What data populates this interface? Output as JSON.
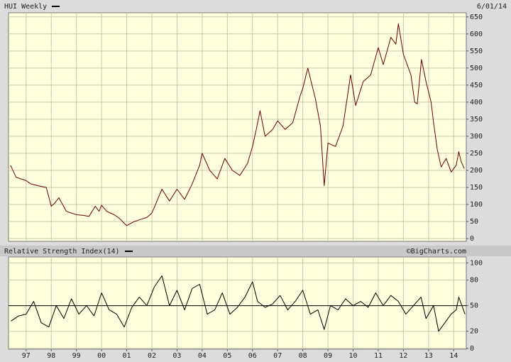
{
  "chart_data": [
    {
      "type": "line",
      "title": "HUI Weekly",
      "date": "6/01/14",
      "color": "#6b0000",
      "x": [
        1996.38,
        1996.6,
        1996.8,
        1997.0,
        1997.2,
        1997.5,
        1997.8,
        1998.0,
        1998.15,
        1998.3,
        1998.6,
        1998.8,
        1999.0,
        1999.3,
        1999.5,
        1999.75,
        1999.9,
        2000.0,
        2000.2,
        2000.5,
        2000.7,
        2000.9,
        2001.0,
        2001.3,
        2001.5,
        2001.8,
        2002.0,
        2002.2,
        2002.4,
        2002.7,
        2003.0,
        2003.3,
        2003.6,
        2003.9,
        2004.0,
        2004.3,
        2004.6,
        2004.9,
        2005.2,
        2005.5,
        2005.8,
        2006.0,
        2006.15,
        2006.3,
        2006.5,
        2006.8,
        2007.0,
        2007.3,
        2007.6,
        2007.9,
        2008.0,
        2008.2,
        2008.5,
        2008.7,
        2008.85,
        2009.0,
        2009.3,
        2009.6,
        2009.9,
        2010.1,
        2010.4,
        2010.7,
        2011.0,
        2011.2,
        2011.5,
        2011.7,
        2011.8,
        2012.0,
        2012.3,
        2012.45,
        2012.55,
        2012.72,
        2012.9,
        2013.1,
        2013.2,
        2013.35,
        2013.5,
        2013.7,
        2013.9,
        2014.1,
        2014.2,
        2014.3,
        2014.42
      ],
      "values": [
        215,
        180,
        175,
        170,
        160,
        155,
        150,
        95,
        105,
        120,
        80,
        75,
        70,
        68,
        65,
        95,
        80,
        98,
        80,
        70,
        60,
        45,
        38,
        50,
        55,
        62,
        75,
        110,
        145,
        110,
        145,
        115,
        160,
        215,
        250,
        200,
        175,
        235,
        200,
        185,
        220,
        270,
        320,
        375,
        300,
        320,
        345,
        320,
        340,
        420,
        440,
        500,
        410,
        330,
        155,
        280,
        270,
        330,
        480,
        390,
        460,
        480,
        560,
        510,
        590,
        570,
        630,
        540,
        480,
        400,
        395,
        525,
        460,
        400,
        340,
        260,
        210,
        235,
        195,
        215,
        255,
        225,
        205
      ],
      "ylim": [
        -8,
        662
      ],
      "yticks": [
        0,
        50,
        100,
        150,
        200,
        250,
        300,
        350,
        400,
        450,
        500,
        550,
        600,
        650
      ],
      "xlim": [
        1996.3,
        2014.5
      ],
      "grid": true
    },
    {
      "type": "line",
      "title": "Relative Strength Index(14)",
      "source": "©BigCharts.com",
      "color": "#000000",
      "x": [
        1996.4,
        1996.7,
        1997.0,
        1997.3,
        1997.6,
        1997.9,
        1998.2,
        1998.5,
        1998.8,
        1999.1,
        1999.4,
        1999.7,
        2000.0,
        2000.3,
        2000.6,
        2000.9,
        2001.2,
        2001.5,
        2001.8,
        2002.1,
        2002.4,
        2002.7,
        2003.0,
        2003.3,
        2003.6,
        2003.9,
        2004.2,
        2004.5,
        2004.8,
        2005.1,
        2005.4,
        2005.7,
        2006.0,
        2006.2,
        2006.5,
        2006.8,
        2007.1,
        2007.4,
        2007.7,
        2008.0,
        2008.3,
        2008.6,
        2008.85,
        2009.1,
        2009.4,
        2009.7,
        2010.0,
        2010.3,
        2010.6,
        2010.9,
        2011.2,
        2011.5,
        2011.8,
        2012.1,
        2012.4,
        2012.7,
        2012.9,
        2013.2,
        2013.4,
        2013.6,
        2013.9,
        2014.1,
        2014.2,
        2014.45
      ],
      "values": [
        32,
        38,
        40,
        55,
        30,
        25,
        50,
        35,
        58,
        40,
        50,
        38,
        65,
        45,
        40,
        25,
        48,
        60,
        50,
        72,
        85,
        50,
        68,
        45,
        70,
        75,
        40,
        45,
        65,
        40,
        48,
        60,
        78,
        55,
        48,
        52,
        62,
        45,
        55,
        68,
        40,
        45,
        22,
        50,
        45,
        58,
        50,
        55,
        48,
        65,
        50,
        62,
        55,
        40,
        50,
        60,
        35,
        50,
        20,
        28,
        40,
        45,
        60,
        40
      ],
      "ylim": [
        -1,
        107
      ],
      "yticks": [
        0,
        20,
        50,
        80,
        100
      ],
      "reference_line": 50,
      "xlim": [
        1996.3,
        2014.5
      ],
      "grid": true,
      "xticks": [
        {
          "value": 1997,
          "label": "97"
        },
        {
          "value": 1998,
          "label": "98"
        },
        {
          "value": 1999,
          "label": "99"
        },
        {
          "value": 2000,
          "label": "00"
        },
        {
          "value": 2001,
          "label": "01"
        },
        {
          "value": 2002,
          "label": "02"
        },
        {
          "value": 2003,
          "label": "03"
        },
        {
          "value": 2004,
          "label": "04"
        },
        {
          "value": 2005,
          "label": "05"
        },
        {
          "value": 2006,
          "label": "06"
        },
        {
          "value": 2007,
          "label": "07"
        },
        {
          "value": 2008,
          "label": "08"
        },
        {
          "value": 2009,
          "label": "09"
        },
        {
          "value": 2010,
          "label": "10"
        },
        {
          "value": 2011,
          "label": "11"
        },
        {
          "value": 2012,
          "label": "12"
        },
        {
          "value": 2013,
          "label": "13"
        },
        {
          "value": 2014,
          "label": "14"
        }
      ]
    }
  ]
}
